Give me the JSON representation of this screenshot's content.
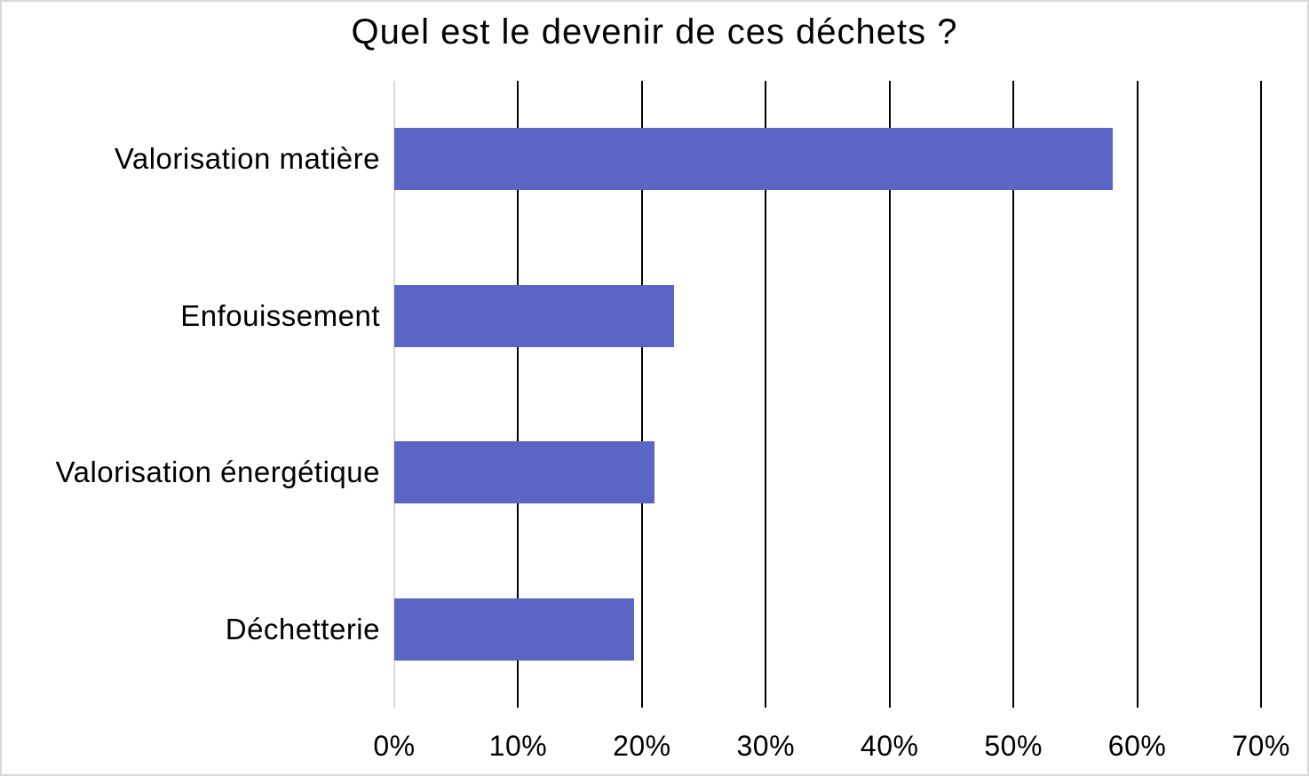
{
  "frame": {
    "background_color": "#ffffff",
    "border_color": "#d9d9d9"
  },
  "chart_data": {
    "type": "bar",
    "orientation": "horizontal",
    "title": "Quel est le devenir de ces déchets ?",
    "categories": [
      "Valorisation matière",
      "Enfouissement",
      "Valorisation énergétique",
      "Déchetterie"
    ],
    "values": [
      58,
      22.6,
      21,
      19.4
    ],
    "unit": "%",
    "xlabel": "",
    "ylabel": "",
    "xlim": [
      0,
      70
    ],
    "x_ticks": [
      0,
      10,
      20,
      30,
      40,
      50,
      60,
      70
    ],
    "x_tick_labels": [
      "0%",
      "10%",
      "20%",
      "30%",
      "40%",
      "50%",
      "60%",
      "70%"
    ],
    "grid": "vertical-gridlines-on",
    "legend": "none",
    "bar_color": "#5b66c4",
    "gridline_color": "#000000",
    "zero_axis_color": "#d9d9d9",
    "text_color": "#000000"
  }
}
